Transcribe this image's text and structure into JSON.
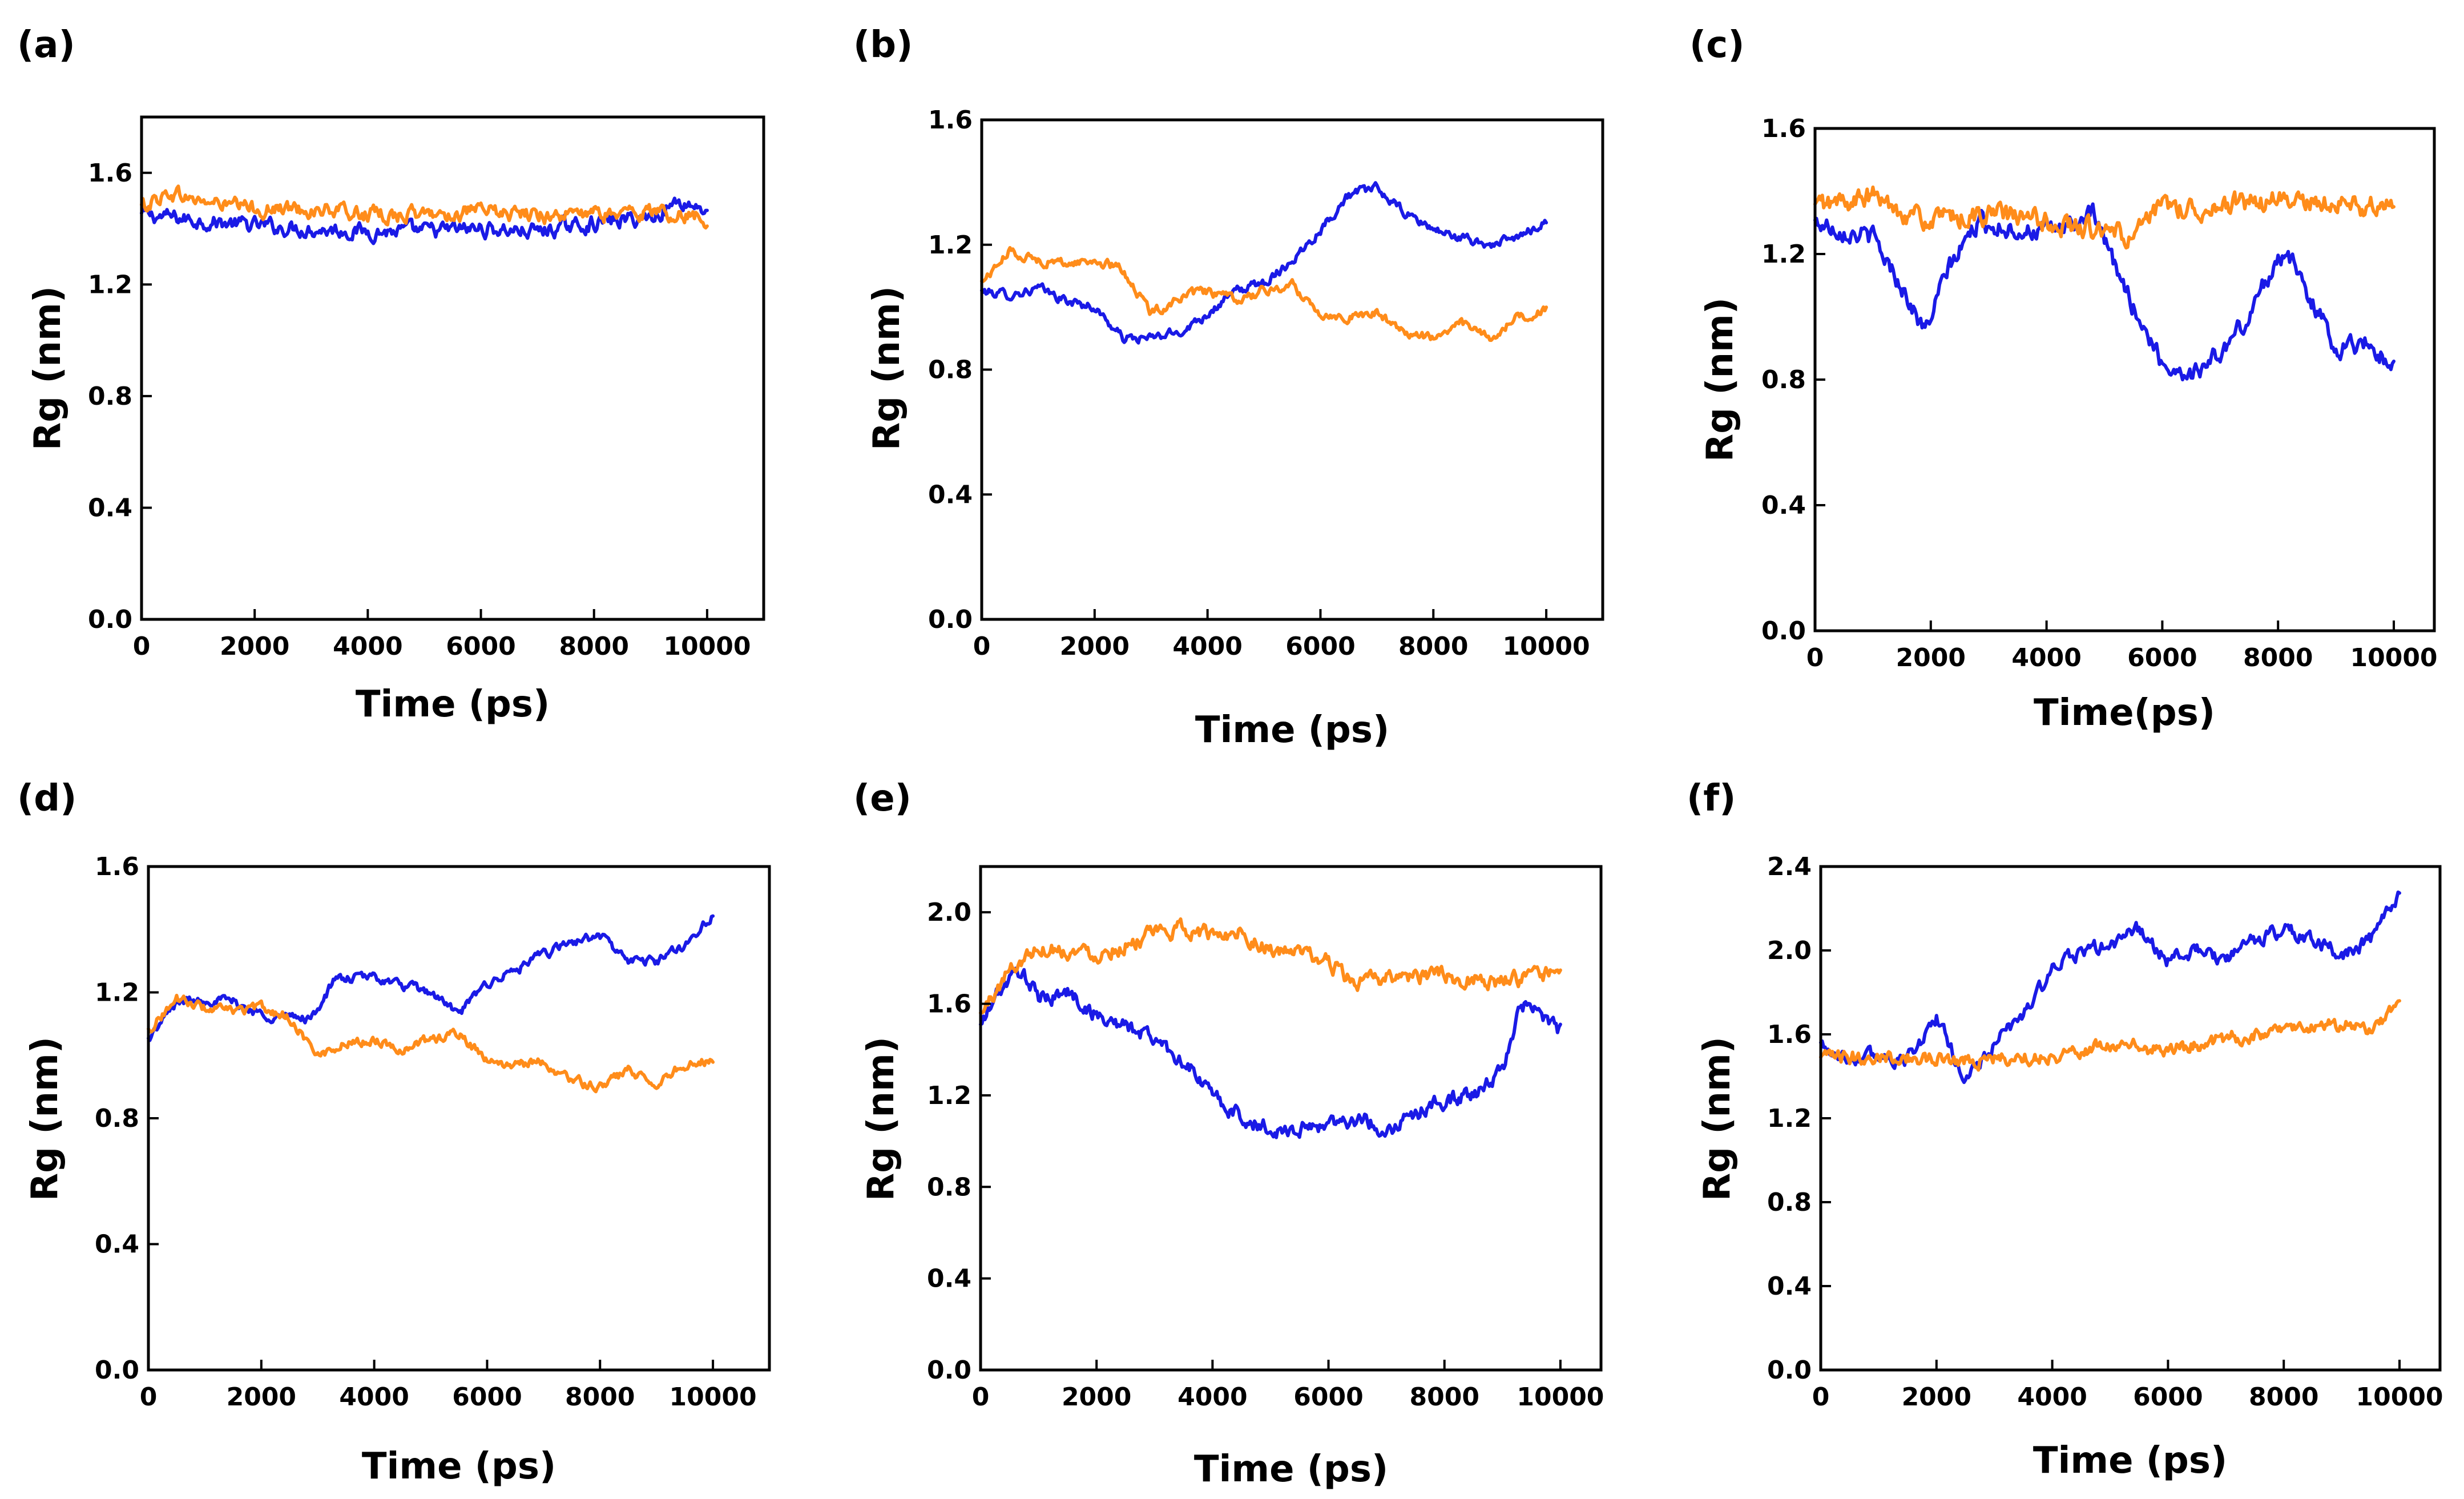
{
  "colors": {
    "blue": "#1a1ae6",
    "orange": "#ff8c1a"
  },
  "chart_data": [
    {
      "panel": "(a)",
      "type": "line",
      "title": "",
      "xlabel": "Time (ps)",
      "ylabel": "Rg (nm)",
      "xlim": [
        0,
        11000
      ],
      "ylim": [
        0,
        1.8
      ],
      "xticks": [
        0,
        2000,
        4000,
        6000,
        8000,
        10000
      ],
      "xtick_labels": [
        "0",
        "2000",
        "4000",
        "6000",
        "8000",
        "10000"
      ],
      "yticks": [
        0,
        0.4,
        0.8,
        1.2,
        1.6
      ],
      "ytick_labels": [
        "0.0",
        "0.4",
        "0.8",
        "1.2",
        "1.6"
      ],
      "series": [
        {
          "name": "blue",
          "color": "#1a1ae6",
          "noise": 0.022,
          "x": [
            0,
            1000,
            2000,
            3000,
            4000,
            5000,
            6000,
            7000,
            8000,
            9000,
            9500,
            10000
          ],
          "y": [
            1.45,
            1.43,
            1.41,
            1.4,
            1.39,
            1.39,
            1.4,
            1.39,
            1.42,
            1.44,
            1.5,
            1.47
          ]
        },
        {
          "name": "orange",
          "color": "#ff8c1a",
          "noise": 0.022,
          "x": [
            0,
            500,
            1000,
            2000,
            3000,
            4000,
            5000,
            6000,
            7000,
            8000,
            9000,
            10000
          ],
          "y": [
            1.48,
            1.53,
            1.5,
            1.47,
            1.47,
            1.45,
            1.45,
            1.46,
            1.45,
            1.45,
            1.46,
            1.44
          ]
        }
      ]
    },
    {
      "panel": "(b)",
      "type": "line",
      "title": "",
      "xlabel": "Time (ps)",
      "ylabel": "Rg (nm)",
      "xlim": [
        0,
        11000
      ],
      "ylim": [
        0,
        1.6
      ],
      "xticks": [
        0,
        2000,
        4000,
        6000,
        8000,
        10000
      ],
      "xtick_labels": [
        "0",
        "2000",
        "4000",
        "6000",
        "8000",
        "10000"
      ],
      "yticks": [
        0,
        0.4,
        0.8,
        1.2,
        1.6
      ],
      "ytick_labels": [
        "0.0",
        "0.4",
        "0.8",
        "1.2",
        "1.6"
      ],
      "series": [
        {
          "name": "blue",
          "color": "#1a1ae6",
          "noise": 0.012,
          "x": [
            0,
            500,
            1000,
            1500,
            2000,
            2500,
            3000,
            3500,
            4000,
            4500,
            5000,
            5500,
            6000,
            6500,
            7000,
            7500,
            8000,
            8500,
            9000,
            9500,
            10000
          ],
          "y": [
            1.05,
            1.04,
            1.06,
            1.02,
            1.0,
            0.9,
            0.9,
            0.92,
            0.98,
            1.05,
            1.08,
            1.15,
            1.25,
            1.36,
            1.38,
            1.3,
            1.25,
            1.22,
            1.2,
            1.22,
            1.28
          ]
        },
        {
          "name": "orange",
          "color": "#ff8c1a",
          "noise": 0.012,
          "x": [
            0,
            500,
            1000,
            1500,
            2000,
            2500,
            3000,
            3500,
            4000,
            4500,
            5000,
            5500,
            6000,
            6500,
            7000,
            7500,
            8000,
            8500,
            9000,
            9500,
            10000
          ],
          "y": [
            1.08,
            1.18,
            1.15,
            1.14,
            1.15,
            1.12,
            0.98,
            1.03,
            1.05,
            1.02,
            1.05,
            1.07,
            0.98,
            0.97,
            0.98,
            0.92,
            0.9,
            0.95,
            0.9,
            0.97,
            0.99
          ]
        }
      ]
    },
    {
      "panel": "(c)",
      "type": "line",
      "title": "",
      "xlabel": "Time(ps)",
      "ylabel": "Rg (nm)",
      "xlim": [
        0,
        10700
      ],
      "ylim": [
        0,
        1.6
      ],
      "xticks": [
        0,
        2000,
        4000,
        6000,
        8000,
        10000
      ],
      "xtick_labels": [
        "0",
        "2000",
        "4000",
        "6000",
        "8000",
        "10000"
      ],
      "yticks": [
        0,
        0.4,
        0.8,
        1.2,
        1.6
      ],
      "ytick_labels": [
        "0.0",
        "0.4",
        "0.8",
        "1.2",
        "1.6"
      ],
      "series": [
        {
          "name": "blue",
          "color": "#1a1ae6",
          "noise": 0.025,
          "x": [
            0,
            500,
            1000,
            1500,
            1900,
            2300,
            2800,
            3500,
            4000,
            4500,
            4800,
            5200,
            5600,
            6000,
            6500,
            7000,
            7500,
            8000,
            8200,
            8600,
            9000,
            9500,
            10000
          ],
          "y": [
            1.3,
            1.28,
            1.25,
            1.1,
            0.95,
            1.15,
            1.3,
            1.28,
            1.27,
            1.3,
            1.32,
            1.15,
            1.0,
            0.85,
            0.82,
            0.88,
            1.0,
            1.2,
            1.18,
            1.05,
            0.9,
            0.92,
            0.85
          ]
        },
        {
          "name": "orange",
          "color": "#ff8c1a",
          "noise": 0.028,
          "x": [
            0,
            1000,
            2000,
            3000,
            4000,
            5000,
            5500,
            6000,
            7000,
            8000,
            9000,
            10000
          ],
          "y": [
            1.35,
            1.38,
            1.3,
            1.33,
            1.3,
            1.27,
            1.25,
            1.35,
            1.35,
            1.37,
            1.36,
            1.35
          ]
        }
      ]
    },
    {
      "panel": "(d)",
      "type": "line",
      "title": "",
      "xlabel": "Time (ps)",
      "ylabel": "Rg (nm)",
      "xlim": [
        0,
        11000
      ],
      "ylim": [
        0,
        1.6
      ],
      "xticks": [
        0,
        2000,
        4000,
        6000,
        8000,
        10000
      ],
      "xtick_labels": [
        "0",
        "2000",
        "4000",
        "6000",
        "8000",
        "10000"
      ],
      "yticks": [
        0,
        0.4,
        0.8,
        1.2,
        1.6
      ],
      "ytick_labels": [
        "0.0",
        "0.4",
        "0.8",
        "1.2",
        "1.6"
      ],
      "series": [
        {
          "name": "blue",
          "color": "#1a1ae6",
          "noise": 0.012,
          "x": [
            0,
            500,
            1000,
            1500,
            2000,
            2500,
            2900,
            3300,
            4000,
            4500,
            5000,
            5500,
            6000,
            6500,
            7000,
            7500,
            8000,
            8500,
            9000,
            9500,
            10000
          ],
          "y": [
            1.05,
            1.17,
            1.18,
            1.17,
            1.13,
            1.12,
            1.12,
            1.24,
            1.25,
            1.22,
            1.2,
            1.13,
            1.23,
            1.27,
            1.32,
            1.36,
            1.38,
            1.3,
            1.3,
            1.35,
            1.45
          ]
        },
        {
          "name": "orange",
          "color": "#ff8c1a",
          "noise": 0.012,
          "x": [
            0,
            500,
            1000,
            1500,
            2000,
            2500,
            3000,
            3500,
            4000,
            4500,
            5000,
            5500,
            6000,
            6500,
            7000,
            7500,
            8000,
            8500,
            9000,
            9500,
            10000
          ],
          "y": [
            1.08,
            1.18,
            1.15,
            1.14,
            1.15,
            1.12,
            1.0,
            1.04,
            1.05,
            1.02,
            1.05,
            1.07,
            0.98,
            0.97,
            0.98,
            0.92,
            0.9,
            0.95,
            0.91,
            0.97,
            0.99
          ]
        }
      ]
    },
    {
      "panel": "(e)",
      "type": "line",
      "title": "",
      "xlabel": "Time (ps)",
      "ylabel": "Rg (nm)",
      "xlim": [
        0,
        10700
      ],
      "ylim": [
        0,
        2.2
      ],
      "xticks": [
        0,
        2000,
        4000,
        6000,
        8000,
        10000
      ],
      "xtick_labels": [
        "0",
        "2000",
        "4000",
        "6000",
        "8000",
        "10000"
      ],
      "yticks": [
        0,
        0.4,
        0.8,
        1.2,
        1.6,
        2.0
      ],
      "ytick_labels": [
        "0.0",
        "0.4",
        "0.8",
        "1.2",
        "1.6",
        "2.0"
      ],
      "series": [
        {
          "name": "blue",
          "color": "#1a1ae6",
          "noise": 0.028,
          "x": [
            0,
            300,
            700,
            1000,
            1500,
            2000,
            2500,
            3000,
            3500,
            4000,
            4500,
            5000,
            5500,
            6000,
            6500,
            7000,
            7500,
            8000,
            8500,
            9000,
            9300,
            9700,
            10000
          ],
          "y": [
            1.5,
            1.65,
            1.75,
            1.62,
            1.65,
            1.55,
            1.5,
            1.45,
            1.35,
            1.2,
            1.1,
            1.05,
            1.05,
            1.08,
            1.1,
            1.05,
            1.12,
            1.18,
            1.2,
            1.3,
            1.6,
            1.55,
            1.48
          ]
        },
        {
          "name": "orange",
          "color": "#ff8c1a",
          "noise": 0.028,
          "x": [
            0,
            500,
            1000,
            2000,
            3000,
            3500,
            4000,
            4500,
            5000,
            5500,
            6000,
            6500,
            7000,
            8000,
            9000,
            10000
          ],
          "y": [
            1.55,
            1.75,
            1.85,
            1.82,
            1.9,
            1.93,
            1.9,
            1.92,
            1.83,
            1.82,
            1.78,
            1.68,
            1.72,
            1.72,
            1.7,
            1.73
          ]
        }
      ]
    },
    {
      "panel": "(f)",
      "type": "line",
      "title": "",
      "xlabel": "Time (ps)",
      "ylabel": "Rg (nm)",
      "xlim": [
        0,
        10700
      ],
      "ylim": [
        0,
        2.4
      ],
      "xticks": [
        0,
        2000,
        4000,
        6000,
        8000,
        10000
      ],
      "xtick_labels": [
        "0",
        "2000",
        "4000",
        "6000",
        "8000",
        "10000"
      ],
      "yticks": [
        0,
        0.4,
        0.8,
        1.2,
        1.6,
        2.0,
        2.4
      ],
      "ytick_labels": [
        "0.0",
        "0.4",
        "0.8",
        "1.2",
        "1.6",
        "2.0",
        "2.4"
      ],
      "series": [
        {
          "name": "blue",
          "color": "#1a1ae6",
          "noise": 0.028,
          "x": [
            0,
            500,
            1000,
            1500,
            1800,
            2000,
            2300,
            2500,
            3000,
            3500,
            4000,
            4500,
            5000,
            5500,
            6000,
            6500,
            7000,
            7500,
            8000,
            8500,
            9000,
            9500,
            10000
          ],
          "y": [
            1.55,
            1.48,
            1.5,
            1.48,
            1.6,
            1.68,
            1.5,
            1.38,
            1.55,
            1.7,
            1.9,
            2.0,
            2.02,
            2.1,
            1.95,
            2.0,
            1.95,
            2.05,
            2.1,
            2.05,
            1.98,
            2.05,
            2.25
          ]
        },
        {
          "name": "orange",
          "color": "#ff8c1a",
          "noise": 0.028,
          "x": [
            0,
            1000,
            2000,
            3000,
            4000,
            5000,
            6000,
            7000,
            8000,
            9000,
            9500,
            10000
          ],
          "y": [
            1.48,
            1.5,
            1.48,
            1.48,
            1.5,
            1.55,
            1.52,
            1.58,
            1.62,
            1.65,
            1.6,
            1.77
          ]
        }
      ]
    }
  ]
}
